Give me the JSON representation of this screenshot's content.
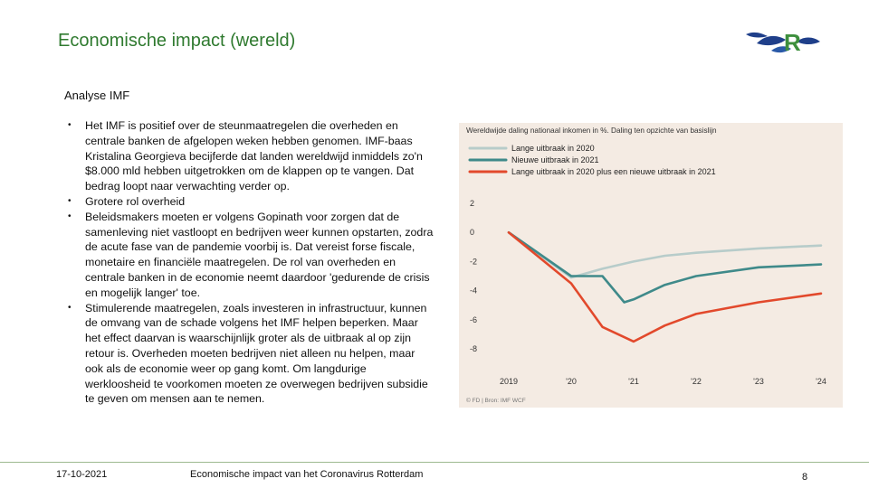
{
  "slide": {
    "title": "Economische impact (wereld)",
    "subtitle": "Analyse IMF",
    "bullets": [
      "Het IMF is positief over de steunmaatregelen die overheden en centrale banken de afgelopen weken hebben genomen. IMF-baas Kristalina Georgieva becijferde dat landen wereldwijd inmiddels zo'n $8.000 mld hebben uitgetrokken om de klappen op te vangen. Dat bedrag loopt naar verwachting verder op.",
      "Grotere rol overheid",
      "Beleidsmakers moeten er volgens Gopinath voor zorgen dat de samenleving niet vastloopt en bedrijven weer kunnen opstarten, zodra de acute fase van de pandemie voorbij is. Dat vereist forse fiscale, monetaire en financiële maatregelen. De rol van overheden en centrale banken in de economie neemt daardoor 'gedurende de crisis en mogelijk langer' toe.",
      "Stimulerende maatregelen, zoals investeren in infrastructuur, kunnen de omvang van de schade volgens het IMF helpen beperken. Maar het effect daarvan is waarschijnlijk groter als de uitbraak al op zijn retour is. Overheden moeten bedrijven niet alleen nu helpen, maar ook als de economie weer op gang komt. Om langdurige werkloosheid te voorkomen moeten ze overwegen bedrijven subsidie te geven om mensen aan te nemen."
    ],
    "bullet_glyph": "•"
  },
  "footer": {
    "date": "17-10-2021",
    "center": "Economische impact van het Coronavirus Rotterdam",
    "page": "8"
  },
  "logo": {
    "icon": "rotterdam-logo",
    "letter": "R",
    "colors": [
      "#1f3f8a",
      "#3d8f3d"
    ]
  },
  "colors": {
    "title": "#2f7a2f",
    "chart_bg": "#f4ebe3"
  },
  "chart_data": {
    "type": "line",
    "title": "Wereldwijde daling nationaal inkomen in %. Daling ten opzichte van basislijn",
    "source": "© FD | Bron: IMF WCF",
    "x": [
      2019,
      2020,
      2021,
      2022,
      2023,
      2024
    ],
    "x_ticks": [
      "2019",
      "'20",
      "'21",
      "'22",
      "'23",
      "'24"
    ],
    "y_ticks": [
      "2",
      "0",
      "-2",
      "-4",
      "-6",
      "-8"
    ],
    "ylim": [
      -8,
      2
    ],
    "grid": false,
    "legend_position": "top-left",
    "series": [
      {
        "name": "Lange uitbraak in 2020",
        "color": "#b7ccca",
        "points": [
          [
            2019.0,
            0
          ],
          [
            2020.0,
            -3.1
          ],
          [
            2020.5,
            -2.5
          ],
          [
            2021.0,
            -2.0
          ],
          [
            2021.5,
            -1.6
          ],
          [
            2022.0,
            -1.4
          ],
          [
            2023.0,
            -1.1
          ],
          [
            2024.0,
            -0.9
          ]
        ]
      },
      {
        "name": "Nieuwe uitbraak in 2021",
        "color": "#3f8a8a",
        "points": [
          [
            2019.0,
            0
          ],
          [
            2020.0,
            -3.0
          ],
          [
            2020.5,
            -3.0
          ],
          [
            2020.85,
            -4.8
          ],
          [
            2021.0,
            -4.6
          ],
          [
            2021.5,
            -3.6
          ],
          [
            2022.0,
            -3.0
          ],
          [
            2023.0,
            -2.4
          ],
          [
            2024.0,
            -2.2
          ]
        ]
      },
      {
        "name": "Lange uitbraak in 2020 plus een nieuwe uitbraak in 2021",
        "color": "#e2492c",
        "points": [
          [
            2019.0,
            0
          ],
          [
            2020.0,
            -3.5
          ],
          [
            2020.5,
            -6.5
          ],
          [
            2021.0,
            -7.5
          ],
          [
            2021.5,
            -6.4
          ],
          [
            2022.0,
            -5.6
          ],
          [
            2023.0,
            -4.8
          ],
          [
            2024.0,
            -4.2
          ]
        ]
      }
    ]
  }
}
